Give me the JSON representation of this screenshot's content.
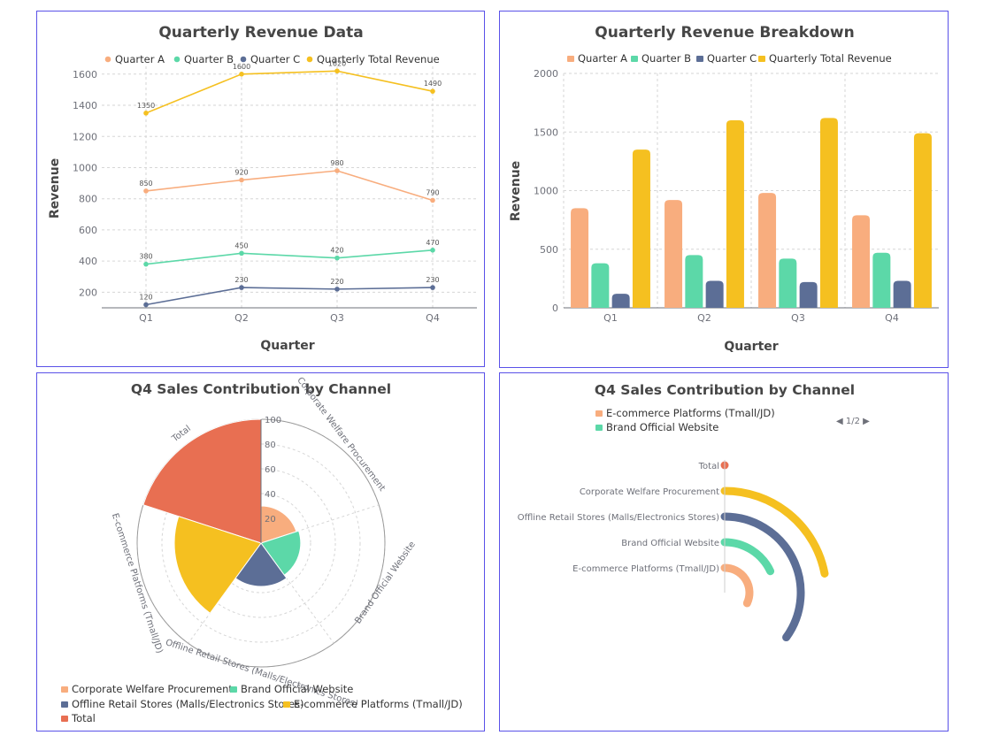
{
  "colors": {
    "quarter_a": "#f8ad7e",
    "quarter_b": "#5cd8a8",
    "quarter_c": "#5c6e96",
    "total": "#f5c020",
    "pie_total": "#e86f52",
    "frame": "#5a52e8"
  },
  "chart_data": [
    {
      "type": "line",
      "title": "Quarterly Revenue Data",
      "xlabel": "Quarter",
      "ylabel": "Revenue",
      "categories": [
        "Q1",
        "Q2",
        "Q3",
        "Q4"
      ],
      "ylim": [
        100,
        1650
      ],
      "yticks": [
        200,
        400,
        600,
        800,
        1000,
        1200,
        1400,
        1600
      ],
      "series": [
        {
          "name": "Quarter A",
          "color_key": "quarter_a",
          "values": [
            850,
            920,
            980,
            790
          ],
          "labels": [
            "850",
            "920",
            "980",
            "790"
          ]
        },
        {
          "name": "Quarter B",
          "color_key": "quarter_b",
          "values": [
            380,
            450,
            420,
            470
          ],
          "labels": [
            "380",
            "450",
            "420",
            "470"
          ]
        },
        {
          "name": "Quarter C",
          "color_key": "quarter_c",
          "values": [
            120,
            230,
            220,
            230
          ],
          "labels": [
            "120",
            "230",
            "220",
            "230"
          ]
        },
        {
          "name": "Quarterly Total Revenue",
          "color_key": "total",
          "values": [
            1350,
            1600,
            1620,
            1490
          ],
          "labels": [
            "1350",
            "1600",
            "1620",
            "1490"
          ]
        }
      ]
    },
    {
      "type": "bar",
      "title": "Quarterly Revenue Breakdown",
      "xlabel": "Quarter",
      "ylabel": "Revenue",
      "categories": [
        "Q1",
        "Q2",
        "Q3",
        "Q4"
      ],
      "ylim": [
        0,
        2000
      ],
      "yticks": [
        0,
        500,
        1000,
        1500,
        2000
      ],
      "series": [
        {
          "name": "Quarter A",
          "color_key": "quarter_a",
          "values": [
            850,
            920,
            980,
            790
          ]
        },
        {
          "name": "Quarter B",
          "color_key": "quarter_b",
          "values": [
            380,
            450,
            420,
            470
          ]
        },
        {
          "name": "Quarter C",
          "color_key": "quarter_c",
          "values": [
            120,
            230,
            220,
            230
          ]
        },
        {
          "name": "Quarterly Total Revenue",
          "color_key": "total",
          "values": [
            1350,
            1600,
            1620,
            1490
          ]
        }
      ]
    },
    {
      "type": "pie",
      "subtype": "polar-bar",
      "title": "Q4 Sales Contribution by Channel",
      "radial_ticks": [
        "20",
        "40",
        "60",
        "80",
        "100"
      ],
      "rmax": 100,
      "categories": [
        "Total",
        "Corporate Welfare Procurement",
        "Brand Official Website",
        "Offline Retail Stores (Malls/Electronics Stores)",
        "E-commerce Platforms (Tmall/JD)"
      ],
      "values": [
        100,
        30,
        32,
        35,
        70
      ],
      "color_keys": [
        "pie_total",
        "quarter_a",
        "quarter_b",
        "quarter_c",
        "total"
      ],
      "legend": [
        "Corporate Welfare Procurement",
        "Brand Official Website",
        "Offline Retail Stores (Malls/Electronics Stores)",
        "E-commerce Platforms (Tmall/JD)",
        "Total"
      ],
      "legend_colors": [
        "quarter_a",
        "quarter_b",
        "quarter_c",
        "total",
        "pie_total"
      ]
    },
    {
      "type": "bar",
      "subtype": "radial-bar",
      "title": "Q4 Sales Contribution by Channel",
      "categories": [
        "Total",
        "Corporate Welfare Procurement",
        "Offline Retail Stores (Malls/Electronics Stores)",
        "Brand Official Website",
        "E-commerce Platforms (Tmall/JD)"
      ],
      "values": [
        100,
        22,
        35,
        18,
        32
      ],
      "color_keys": [
        "pie_total",
        "total",
        "quarter_c",
        "quarter_b",
        "quarter_a"
      ],
      "legend": [
        "E-commerce Platforms (Tmall/JD)",
        "Brand Official Website"
      ],
      "legend_colors": [
        "quarter_a",
        "quarter_b"
      ],
      "legend_page": "1/2"
    }
  ]
}
